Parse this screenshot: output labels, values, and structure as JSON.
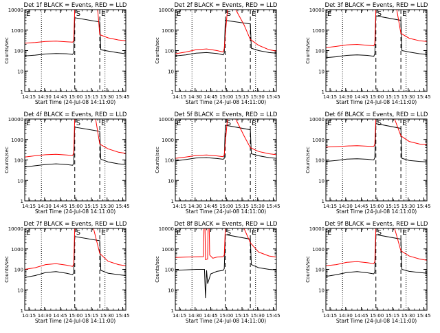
{
  "figure": {
    "xtick_labels": [
      "14:15",
      "14:30",
      "14:45",
      "15:00",
      "15:15",
      "15:30",
      "15:45"
    ],
    "xlabel": "Start Time (24-Jul-08 14:11:00)",
    "ylabel": "Counts/sec",
    "ytick_labels": [
      "1",
      "10",
      "100",
      "1000",
      "10000"
    ],
    "colors": {
      "events": "#000000",
      "lld": "#ff0000",
      "axes": "#000000"
    }
  },
  "chart_data": [
    {
      "type": "line",
      "title": "Det 1f BLACK = Events, RED = LLD",
      "xlabel": "Start Time (24-Jul-08 14:11:00)",
      "ylabel": "Counts/sec",
      "x_units": "minutes after 14:11:00",
      "xlim": [
        0,
        97
      ],
      "ylim": [
        1,
        10000
      ],
      "yscale": "log",
      "markers": [
        {
          "x": 16,
          "style": "dotted"
        },
        {
          "x": 48,
          "style": "dashed",
          "label": "S"
        },
        {
          "x": 72,
          "style": "dashed",
          "label": "E"
        },
        {
          "x": 77,
          "style": "dotted"
        }
      ],
      "series": [
        {
          "name": "Events",
          "color": "#000000",
          "x": [
            0,
            10,
            20,
            30,
            40,
            46,
            47,
            48,
            72,
            73,
            80,
            90,
            97
          ],
          "y": [
            55,
            60,
            68,
            72,
            70,
            65,
            80,
            4000,
            2500,
            110,
            95,
            78,
            70
          ]
        },
        {
          "name": "LLD",
          "color": "#ff0000",
          "x": [
            0,
            10,
            20,
            30,
            40,
            46,
            47,
            48,
            70,
            72,
            80,
            90,
            97
          ],
          "y": [
            230,
            250,
            280,
            290,
            270,
            260,
            300,
            10000,
            10000,
            600,
            420,
            330,
            300
          ]
        }
      ]
    },
    {
      "type": "line",
      "title": "Det 2f BLACK = Events, RED = LLD",
      "xlabel": "Start Time (24-Jul-08 14:11:00)",
      "ylabel": "Counts/sec",
      "x_units": "minutes after 14:11:00",
      "xlim": [
        0,
        97
      ],
      "ylim": [
        1,
        10000
      ],
      "yscale": "log",
      "markers": [
        {
          "x": 16,
          "style": "dotted"
        },
        {
          "x": 48,
          "style": "dashed",
          "label": "S"
        },
        {
          "x": 72,
          "style": "dashed",
          "label": "E"
        },
        {
          "x": 77,
          "style": "dotted"
        }
      ],
      "series": [
        {
          "name": "Events",
          "color": "#000000",
          "x": [
            0,
            10,
            20,
            30,
            40,
            46,
            47,
            48,
            72,
            73,
            80,
            90,
            97
          ],
          "y": [
            55,
            62,
            75,
            80,
            72,
            62,
            75,
            3000,
            2000,
            130,
            100,
            80,
            75
          ]
        },
        {
          "name": "LLD",
          "color": "#ff0000",
          "x": [
            0,
            10,
            20,
            30,
            40,
            46,
            47,
            50,
            58,
            66,
            72,
            80,
            90,
            97
          ],
          "y": [
            70,
            85,
            110,
            120,
            100,
            85,
            130,
            10000,
            10000,
            1800,
            350,
            180,
            110,
            95
          ]
        }
      ]
    },
    {
      "type": "line",
      "title": "Det 3f BLACK = Events, RED = LLD",
      "xlabel": "Start Time (24-Jul-08 14:11:00)",
      "ylabel": "Counts/sec",
      "x_units": "minutes after 14:11:00",
      "xlim": [
        0,
        97
      ],
      "ylim": [
        1,
        10000
      ],
      "yscale": "log",
      "markers": [
        {
          "x": 16,
          "style": "dotted"
        },
        {
          "x": 48,
          "style": "dashed",
          "label": "S"
        },
        {
          "x": 72,
          "style": "dashed",
          "label": "E"
        },
        {
          "x": 77,
          "style": "dotted"
        }
      ],
      "series": [
        {
          "name": "Events",
          "color": "#000000",
          "x": [
            0,
            10,
            20,
            30,
            40,
            46,
            47,
            48,
            72,
            73,
            80,
            90,
            97
          ],
          "y": [
            45,
            50,
            58,
            62,
            58,
            52,
            70,
            5000,
            3000,
            100,
            85,
            70,
            65
          ]
        },
        {
          "name": "LLD",
          "color": "#ff0000",
          "x": [
            0,
            10,
            20,
            30,
            40,
            46,
            47,
            48,
            68,
            72,
            80,
            90,
            97
          ],
          "y": [
            140,
            160,
            190,
            200,
            180,
            170,
            220,
            10000,
            10000,
            700,
            400,
            300,
            280
          ]
        }
      ]
    },
    {
      "type": "line",
      "title": "Det 4f BLACK = Events, RED = LLD",
      "xlabel": "Start Time (24-Jul-08 14:11:00)",
      "ylabel": "Counts/sec",
      "x_units": "minutes after 14:11:00",
      "xlim": [
        0,
        97
      ],
      "ylim": [
        1,
        10000
      ],
      "yscale": "log",
      "markers": [
        {
          "x": 16,
          "style": "dotted"
        },
        {
          "x": 48,
          "style": "dashed",
          "label": "S"
        },
        {
          "x": 72,
          "style": "dashed",
          "label": "E"
        },
        {
          "x": 77,
          "style": "dotted"
        }
      ],
      "series": [
        {
          "name": "Events",
          "color": "#000000",
          "x": [
            0,
            10,
            20,
            30,
            40,
            46,
            47,
            48,
            72,
            73,
            80,
            90,
            97
          ],
          "y": [
            45,
            52,
            60,
            65,
            60,
            55,
            70,
            4000,
            2500,
            110,
            80,
            65,
            60
          ]
        },
        {
          "name": "LLD",
          "color": "#ff0000",
          "x": [
            0,
            10,
            20,
            30,
            40,
            46,
            47,
            48,
            68,
            72,
            80,
            90,
            97
          ],
          "y": [
            140,
            160,
            180,
            190,
            175,
            165,
            220,
            10000,
            10000,
            600,
            350,
            240,
            210
          ]
        }
      ]
    },
    {
      "type": "line",
      "title": "Det 5f BLACK = Events, RED = LLD",
      "xlabel": "Start Time (24-Jul-08 14:11:00)",
      "ylabel": "Counts/sec",
      "x_units": "minutes after 14:11:00",
      "xlim": [
        0,
        97
      ],
      "ylim": [
        1,
        10000
      ],
      "yscale": "log",
      "markers": [
        {
          "x": 16,
          "style": "dotted"
        },
        {
          "x": 48,
          "style": "dashed",
          "label": "S"
        },
        {
          "x": 72,
          "style": "dashed",
          "label": "E"
        },
        {
          "x": 77,
          "style": "dotted"
        }
      ],
      "series": [
        {
          "name": "Events",
          "color": "#000000",
          "x": [
            0,
            10,
            20,
            30,
            40,
            46,
            47,
            48,
            72,
            73,
            80,
            90,
            97
          ],
          "y": [
            90,
            105,
            125,
            130,
            118,
            108,
            120,
            5000,
            3000,
            200,
            160,
            130,
            120
          ]
        },
        {
          "name": "LLD",
          "color": "#ff0000",
          "x": [
            0,
            10,
            20,
            30,
            40,
            46,
            47,
            50,
            58,
            66,
            72,
            80,
            90,
            97
          ],
          "y": [
            120,
            140,
            165,
            175,
            158,
            145,
            180,
            10000,
            10000,
            1500,
            400,
            260,
            200,
            180
          ]
        }
      ]
    },
    {
      "type": "line",
      "title": "Det 6f BLACK = Events, RED = LLD",
      "xlabel": "Start Time (24-Jul-08 14:11:00)",
      "ylabel": "Counts/sec",
      "x_units": "minutes after 14:11:00",
      "xlim": [
        0,
        97
      ],
      "ylim": [
        1,
        10000
      ],
      "yscale": "log",
      "markers": [
        {
          "x": 16,
          "style": "dotted"
        },
        {
          "x": 48,
          "style": "dashed",
          "label": "S"
        },
        {
          "x": 72,
          "style": "dashed",
          "label": "E"
        },
        {
          "x": 77,
          "style": "dotted"
        }
      ],
      "series": [
        {
          "name": "Events",
          "color": "#000000",
          "x": [
            0,
            10,
            20,
            30,
            40,
            46,
            47,
            48,
            72,
            73,
            80,
            90,
            97
          ],
          "y": [
            85,
            95,
            110,
            115,
            108,
            100,
            130,
            6000,
            3500,
            120,
            95,
            85,
            80
          ]
        },
        {
          "name": "LLD",
          "color": "#ff0000",
          "x": [
            0,
            10,
            20,
            30,
            40,
            46,
            47,
            48,
            66,
            72,
            80,
            90,
            97
          ],
          "y": [
            430,
            450,
            480,
            500,
            470,
            460,
            600,
            10000,
            10000,
            1500,
            800,
            600,
            550
          ]
        }
      ]
    },
    {
      "type": "line",
      "title": "Det 7f BLACK = Events, RED = LLD",
      "xlabel": "Start Time (24-Jul-08 14:11:00)",
      "ylabel": "Counts/sec",
      "x_units": "minutes after 14:11:00",
      "xlim": [
        0,
        97
      ],
      "ylim": [
        1,
        10000
      ],
      "yscale": "log",
      "markers": [
        {
          "x": 16,
          "style": "dotted"
        },
        {
          "x": 48,
          "style": "dashed",
          "label": "S"
        },
        {
          "x": 72,
          "style": "dashed",
          "label": "E"
        },
        {
          "x": 77,
          "style": "dotted"
        }
      ],
      "series": [
        {
          "name": "Events",
          "color": "#000000",
          "x": [
            0,
            10,
            20,
            30,
            40,
            46,
            47,
            48,
            72,
            73,
            80,
            90,
            97
          ],
          "y": [
            40,
            50,
            70,
            78,
            65,
            55,
            70,
            4000,
            2500,
            90,
            65,
            55,
            50
          ]
        },
        {
          "name": "LLD",
          "color": "#ff0000",
          "x": [
            0,
            10,
            20,
            30,
            40,
            46,
            47,
            48,
            66,
            72,
            80,
            90,
            97
          ],
          "y": [
            100,
            120,
            170,
            190,
            160,
            140,
            180,
            10000,
            10000,
            600,
            250,
            170,
            150
          ]
        }
      ]
    },
    {
      "type": "line",
      "title": "Det 8f BLACK = Events, RED = LLD",
      "xlabel": "Start Time (24-Jul-08 14:11:00)",
      "ylabel": "Counts/sec",
      "x_units": "minutes after 14:11:00",
      "xlim": [
        0,
        97
      ],
      "ylim": [
        1,
        10000
      ],
      "yscale": "log",
      "markers": [
        {
          "x": 16,
          "style": "dotted"
        },
        {
          "x": 48,
          "style": "dashed",
          "label": "S"
        },
        {
          "x": 72,
          "style": "dashed",
          "label": "E"
        },
        {
          "x": 77,
          "style": "dotted"
        }
      ],
      "series": [
        {
          "name": "Events",
          "color": "#000000",
          "x": [
            0,
            10,
            20,
            28,
            29,
            30,
            31,
            34,
            40,
            46,
            47,
            48,
            72,
            73,
            80,
            90,
            97
          ],
          "y": [
            90,
            95,
            100,
            100,
            4,
            90,
            20,
            60,
            80,
            90,
            110,
            5000,
            3000,
            170,
            120,
            100,
            95
          ]
        },
        {
          "name": "LLD",
          "color": "#ff0000",
          "x": [
            0,
            10,
            20,
            27,
            27.5,
            28.5,
            29,
            31,
            31.5,
            32.5,
            33,
            36,
            40,
            46,
            47,
            48,
            66,
            72,
            80,
            90,
            97
          ],
          "y": [
            380,
            400,
            410,
            420,
            10000,
            10000,
            300,
            320,
            10000,
            10000,
            500,
            350,
            400,
            420,
            500,
            10000,
            10000,
            2000,
            700,
            450,
            400
          ]
        }
      ]
    },
    {
      "type": "line",
      "title": "Det 9f BLACK = Events, RED = LLD",
      "xlabel": "Start Time (24-Jul-08 14:11:00)",
      "ylabel": "Counts/sec",
      "x_units": "minutes after 14:11:00",
      "xlim": [
        0,
        97
      ],
      "ylim": [
        1,
        10000
      ],
      "yscale": "log",
      "markers": [
        {
          "x": 16,
          "style": "dotted"
        },
        {
          "x": 48,
          "style": "dashed",
          "label": "S"
        },
        {
          "x": 72,
          "style": "dashed",
          "label": "E"
        },
        {
          "x": 77,
          "style": "dotted"
        }
      ],
      "series": [
        {
          "name": "Events",
          "color": "#000000",
          "x": [
            0,
            10,
            20,
            30,
            40,
            46,
            47,
            48,
            72,
            73,
            80,
            90,
            97
          ],
          "y": [
            45,
            55,
            70,
            78,
            68,
            60,
            75,
            5000,
            3000,
            100,
            80,
            70,
            65
          ]
        },
        {
          "name": "LLD",
          "color": "#ff0000",
          "x": [
            0,
            10,
            20,
            30,
            40,
            46,
            47,
            48,
            66,
            72,
            80,
            90,
            97
          ],
          "y": [
            150,
            170,
            220,
            240,
            210,
            190,
            240,
            10000,
            10000,
            800,
            450,
            320,
            280
          ]
        }
      ]
    }
  ]
}
